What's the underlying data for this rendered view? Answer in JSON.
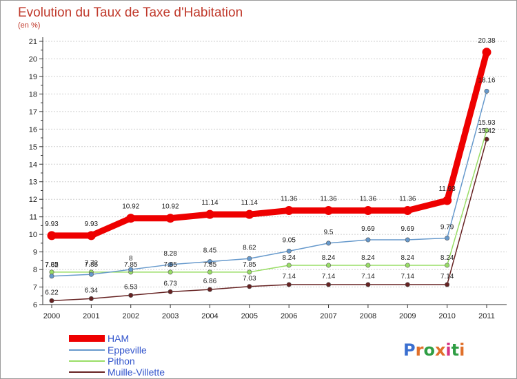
{
  "chart_data": {
    "type": "line",
    "title": "Evolution du Taux de Taxe d'Habitation",
    "subtitle": "(en %)",
    "x": [
      "2000",
      "2001",
      "2002",
      "2003",
      "2004",
      "2005",
      "2006",
      "2007",
      "2008",
      "2009",
      "2010",
      "2011"
    ],
    "ylim": [
      6,
      21
    ],
    "yticks": [
      6,
      7,
      8,
      9,
      10,
      11,
      12,
      13,
      14,
      15,
      16,
      17,
      18,
      19,
      20,
      21
    ],
    "grid": "horizontal",
    "legend_position": "bottom-left",
    "series": [
      {
        "name": "HAM",
        "color": "#ee0000",
        "values": [
          9.93,
          9.93,
          10.92,
          10.92,
          11.14,
          11.14,
          11.36,
          11.36,
          11.36,
          11.36,
          11.93,
          20.38
        ]
      },
      {
        "name": "Eppeville",
        "color": "#6699cc",
        "values": [
          7.62,
          7.72,
          8,
          8.28,
          8.45,
          8.62,
          9.05,
          9.5,
          9.69,
          9.69,
          9.79,
          18.16
        ]
      },
      {
        "name": "Pithon",
        "color": "#99dd66",
        "values": [
          7.85,
          7.85,
          7.85,
          7.85,
          7.85,
          7.85,
          8.24,
          8.24,
          8.24,
          8.24,
          8.24,
          15.93
        ]
      },
      {
        "name": "Muille-Villette",
        "color": "#662222",
        "values": [
          6.22,
          6.34,
          6.53,
          6.73,
          6.86,
          7.03,
          7.14,
          7.14,
          7.14,
          7.14,
          7.14,
          15.42
        ]
      }
    ]
  },
  "logo": {
    "text": "Proxiti"
  }
}
